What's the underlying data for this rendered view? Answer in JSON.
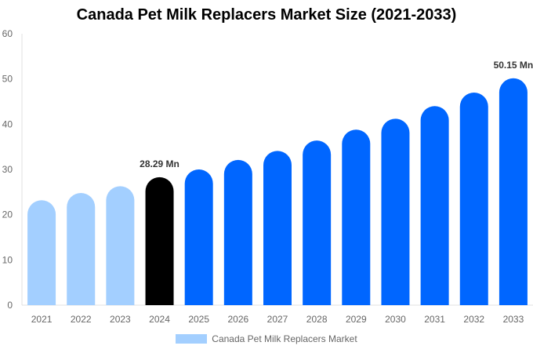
{
  "chart_data": {
    "type": "bar",
    "title": "Canada Pet Milk Replacers Market Size (2021-2033)",
    "categories": [
      "2021",
      "2022",
      "2023",
      "2024",
      "2025",
      "2026",
      "2027",
      "2028",
      "2029",
      "2030",
      "2031",
      "2032",
      "2033"
    ],
    "series": [
      {
        "name": "Canada Pet Milk Replacers Market",
        "values": [
          23.2,
          24.8,
          26.3,
          28.29,
          30.0,
          32.1,
          34.1,
          36.4,
          38.8,
          41.2,
          44.0,
          47.0,
          50.15
        ]
      }
    ],
    "bar_colors": [
      "#a3cfff",
      "#a3cfff",
      "#a3cfff",
      "#000000",
      "#0066ff",
      "#0066ff",
      "#0066ff",
      "#0066ff",
      "#0066ff",
      "#0066ff",
      "#0066ff",
      "#0066ff",
      "#0066ff"
    ],
    "data_labels": [
      {
        "index": 3,
        "text": "28.29 Mn"
      },
      {
        "index": 12,
        "text": "50.15 Mn"
      }
    ],
    "ylim": [
      0,
      60
    ],
    "yticks": [
      0,
      10,
      20,
      30,
      40,
      50,
      60
    ],
    "xlabel": "",
    "ylabel": "",
    "grid": false,
    "legend_position": "bottom",
    "legend_color": "#a3cfff"
  }
}
